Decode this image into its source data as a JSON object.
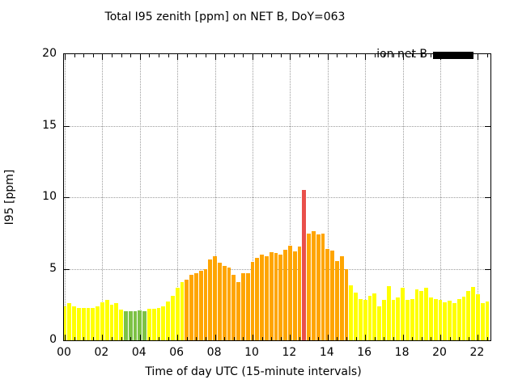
{
  "chart_data": {
    "type": "bar",
    "title": "Total I95 zenith [ppm] on NET B, DoY=063",
    "xlabel": "Time of day UTC (15-minute intervals)",
    "ylabel": "I95 [ppm]",
    "ylim": [
      0,
      20
    ],
    "xlim_hours": [
      -0.05,
      22.7
    ],
    "grid": true,
    "yticks": [
      0,
      5,
      10,
      15,
      20
    ],
    "xticks": [
      "00",
      "02",
      "04",
      "06",
      "08",
      "10",
      "12",
      "14",
      "16",
      "18",
      "20",
      "22"
    ],
    "xtick_hours": [
      0,
      2,
      4,
      6,
      8,
      10,
      12,
      14,
      16,
      18,
      20,
      22
    ],
    "interval_minutes": 15,
    "legend": {
      "label": "ion net B",
      "position": "top-right",
      "swatch_color": "#000000"
    },
    "palette": {
      "y": "#ffff00",
      "g": "#7dc245",
      "o": "#ffa500",
      "r": "#e94f4b"
    },
    "times": [
      "00:00",
      "00:15",
      "00:30",
      "00:45",
      "01:00",
      "01:15",
      "01:30",
      "01:45",
      "02:00",
      "02:15",
      "02:30",
      "02:45",
      "03:00",
      "03:15",
      "03:30",
      "03:45",
      "04:00",
      "04:15",
      "04:30",
      "04:45",
      "05:00",
      "05:15",
      "05:30",
      "05:45",
      "06:00",
      "06:15",
      "06:30",
      "06:45",
      "07:00",
      "07:15",
      "07:30",
      "07:45",
      "08:00",
      "08:15",
      "08:30",
      "08:45",
      "09:00",
      "09:15",
      "09:30",
      "09:45",
      "10:00",
      "10:15",
      "10:30",
      "10:45",
      "11:00",
      "11:15",
      "11:30",
      "11:45",
      "12:00",
      "12:15",
      "12:30",
      "12:45",
      "13:00",
      "13:15",
      "13:30",
      "13:45",
      "14:00",
      "14:15",
      "14:30",
      "14:45",
      "15:00",
      "15:15",
      "15:30",
      "15:45",
      "16:00",
      "16:15",
      "16:30",
      "16:45",
      "17:00",
      "17:15",
      "17:30",
      "17:45",
      "18:00",
      "18:15",
      "18:30",
      "18:45",
      "19:00",
      "19:15",
      "19:30",
      "19:45",
      "20:00",
      "20:15",
      "20:30",
      "20:45",
      "21:00",
      "21:15",
      "21:30",
      "21:45",
      "22:00",
      "22:15",
      "22:30"
    ],
    "values": [
      2.35,
      2.6,
      2.4,
      2.25,
      2.25,
      2.25,
      2.25,
      2.35,
      2.65,
      2.8,
      2.5,
      2.6,
      2.15,
      2.05,
      2.05,
      2.05,
      2.1,
      2.05,
      2.2,
      2.2,
      2.25,
      2.4,
      2.7,
      3.1,
      3.7,
      4.05,
      4.25,
      4.55,
      4.7,
      4.85,
      5.0,
      5.65,
      5.85,
      5.45,
      5.2,
      5.1,
      4.6,
      4.05,
      4.7,
      4.7,
      5.5,
      5.75,
      6.0,
      5.9,
      6.15,
      6.1,
      6.0,
      6.35,
      6.6,
      6.2,
      6.55,
      10.5,
      7.45,
      7.65,
      7.4,
      7.45,
      6.4,
      6.3,
      5.55,
      5.85,
      4.95,
      3.85,
      3.35,
      2.9,
      2.85,
      3.1,
      3.25,
      2.4,
      2.85,
      3.8,
      2.8,
      3.0,
      3.7,
      2.85,
      2.9,
      3.55,
      3.45,
      3.7,
      3.0,
      2.9,
      2.8,
      2.65,
      2.75,
      2.6,
      2.9,
      3.05,
      3.45,
      3.75,
      3.2,
      2.6,
      2.7
    ],
    "bar_colors": [
      "y",
      "y",
      "y",
      "y",
      "y",
      "y",
      "y",
      "y",
      "y",
      "y",
      "y",
      "y",
      "y",
      "g",
      "g",
      "g",
      "g",
      "g",
      "y",
      "y",
      "y",
      "y",
      "y",
      "y",
      "y",
      "y",
      "o",
      "o",
      "o",
      "o",
      "o",
      "o",
      "o",
      "o",
      "o",
      "o",
      "o",
      "o",
      "o",
      "o",
      "o",
      "o",
      "o",
      "o",
      "o",
      "o",
      "o",
      "o",
      "o",
      "o",
      "o",
      "r",
      "o",
      "o",
      "o",
      "o",
      "o",
      "o",
      "o",
      "o",
      "o",
      "y",
      "y",
      "y",
      "y",
      "y",
      "y",
      "y",
      "y",
      "y",
      "y",
      "y",
      "y",
      "y",
      "y",
      "y",
      "y",
      "y",
      "y",
      "y",
      "y",
      "y",
      "y",
      "y",
      "y",
      "y",
      "y",
      "y",
      "y",
      "y",
      "y"
    ]
  }
}
